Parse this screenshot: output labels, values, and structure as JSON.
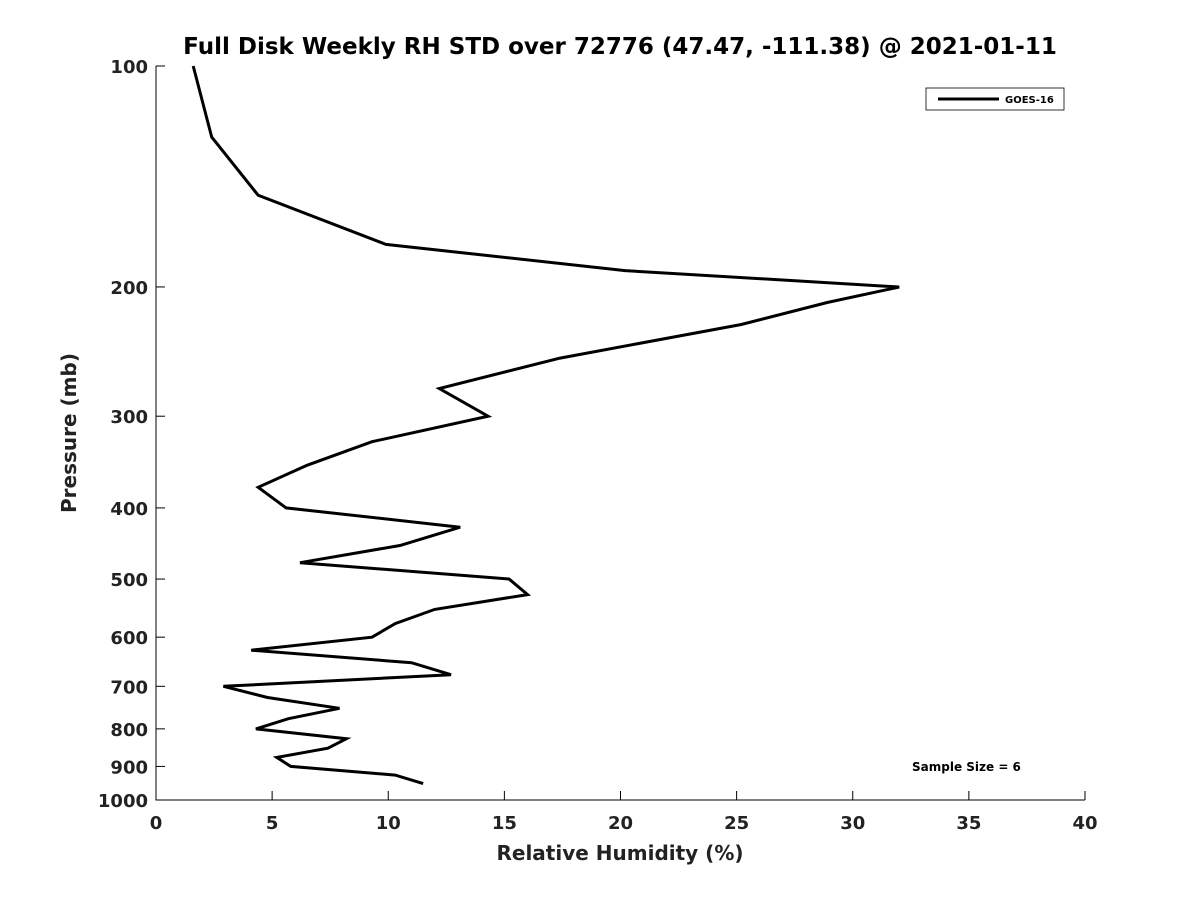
{
  "chart_data": {
    "type": "line",
    "title": "Full Disk Weekly RH STD over 72776 (47.47, -111.38) @ 2021-01-11",
    "xlabel": "Relative Humidity (%)",
    "ylabel": "Pressure (mb)",
    "xlim": [
      0,
      40
    ],
    "ylim": [
      100,
      1000
    ],
    "y_scale": "log",
    "y_reversed": true,
    "x_ticks": [
      0,
      5,
      10,
      15,
      20,
      25,
      30,
      35,
      40
    ],
    "x_tick_labels": [
      "0",
      "5",
      "10",
      "15",
      "20",
      "25",
      "30",
      "35",
      "40"
    ],
    "y_ticks": [
      100,
      200,
      300,
      400,
      500,
      600,
      700,
      800,
      900,
      1000
    ],
    "y_tick_labels": [
      "100",
      "200",
      "300",
      "400",
      "500",
      "600",
      "700",
      "800",
      "900",
      "1000"
    ],
    "grid": false,
    "legend_position": "top-right",
    "annotation": "Sample Size = 6",
    "series": [
      {
        "name": "GOES-16",
        "color": "#000000",
        "points": [
          [
            1.6,
            100
          ],
          [
            2.4,
            125
          ],
          [
            4.4,
            150
          ],
          [
            9.9,
            175
          ],
          [
            20.2,
            190
          ],
          [
            32.0,
            200
          ],
          [
            28.9,
            210
          ],
          [
            25.2,
            225
          ],
          [
            17.4,
            250
          ],
          [
            12.2,
            275
          ],
          [
            14.3,
            300
          ],
          [
            9.3,
            325
          ],
          [
            6.5,
            350
          ],
          [
            4.4,
            375
          ],
          [
            5.6,
            400
          ],
          [
            13.1,
            425
          ],
          [
            10.5,
            450
          ],
          [
            6.2,
            475
          ],
          [
            15.2,
            500
          ],
          [
            16.0,
            525
          ],
          [
            12.0,
            550
          ],
          [
            10.3,
            575
          ],
          [
            9.3,
            600
          ],
          [
            4.1,
            625
          ],
          [
            11.0,
            650
          ],
          [
            12.7,
            675
          ],
          [
            2.9,
            700
          ],
          [
            4.8,
            725
          ],
          [
            7.9,
            750
          ],
          [
            5.7,
            775
          ],
          [
            4.3,
            800
          ],
          [
            8.2,
            825
          ],
          [
            7.4,
            850
          ],
          [
            5.2,
            875
          ],
          [
            5.8,
            900
          ],
          [
            10.3,
            925
          ],
          [
            11.5,
            950
          ]
        ]
      }
    ]
  }
}
